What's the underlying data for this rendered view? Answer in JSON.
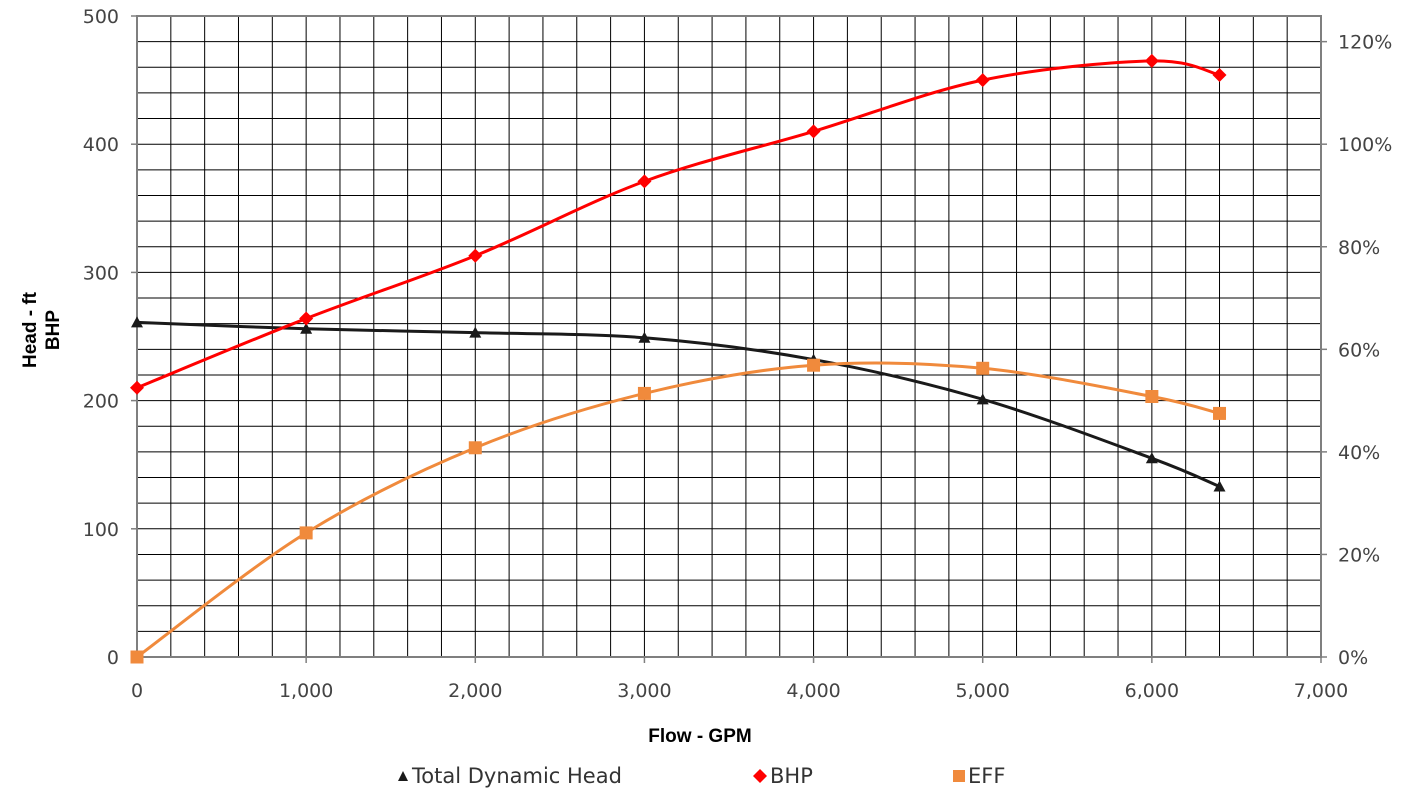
{
  "chart_data": {
    "type": "line",
    "title": "",
    "xlabel": "Flow - GPM",
    "ylabel": "Head - ft",
    "ylabel2": "BHP",
    "xlim": [
      0,
      7000
    ],
    "ylim": [
      0,
      500
    ],
    "y2lim": [
      0,
      125
    ],
    "grid": true,
    "legend_position": "bottom",
    "x_ticks": [
      "0",
      "1,000",
      "2,000",
      "3,000",
      "4,000",
      "5,000",
      "6,000",
      "7,000"
    ],
    "y_ticks": [
      "0",
      "100",
      "200",
      "300",
      "400",
      "500"
    ],
    "y2_ticks": [
      "0%",
      "20%",
      "40%",
      "60%",
      "80%",
      "100%",
      "120%"
    ],
    "x_tick_values": [
      0,
      1000,
      2000,
      3000,
      4000,
      5000,
      6000,
      7000
    ],
    "y_tick_values": [
      0,
      100,
      200,
      300,
      400,
      500
    ],
    "y2_tick_values": [
      0,
      20,
      40,
      60,
      80,
      100,
      120
    ],
    "series": [
      {
        "name": "Total Dynamic Head",
        "axis": "left",
        "marker": "triangle",
        "color": "#1a1a1a",
        "x": [
          0,
          1000,
          2000,
          3000,
          4000,
          5000,
          6000,
          6400
        ],
        "values": [
          261,
          256,
          253,
          249,
          232,
          201,
          155,
          133
        ]
      },
      {
        "name": "BHP",
        "axis": "left",
        "marker": "diamond",
        "color": "#ff0000",
        "x": [
          0,
          1000,
          2000,
          3000,
          4000,
          5000,
          6000,
          6400
        ],
        "values": [
          210,
          264,
          313,
          371,
          410,
          450,
          465,
          454
        ]
      },
      {
        "name": "EFF",
        "axis": "right",
        "marker": "square",
        "color": "#f08a3c",
        "x": [
          0,
          1000,
          2000,
          3000,
          4000,
          5000,
          6000,
          6400
        ],
        "values": [
          0,
          24.2,
          40.8,
          51.4,
          56.9,
          56.3,
          50.8,
          47.5
        ]
      }
    ]
  }
}
